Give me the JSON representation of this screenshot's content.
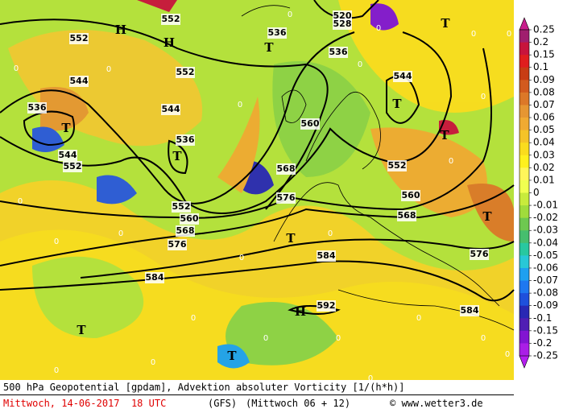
{
  "map": {
    "contour_labels": [
      "552",
      "552",
      "552",
      "552",
      "552",
      "552",
      "544",
      "544",
      "544",
      "544",
      "536",
      "536",
      "536",
      "536",
      "560",
      "560",
      "560",
      "568",
      "568",
      "568",
      "576",
      "576",
      "576",
      "584",
      "584",
      "584",
      "592",
      "520",
      "528"
    ],
    "symbols": [
      "H",
      "H",
      "H",
      "T",
      "T",
      "T",
      "T",
      "T",
      "T",
      "T",
      "T",
      "T",
      "T"
    ],
    "zero_labels": [
      "0",
      "0",
      "0",
      "0",
      "0",
      "0",
      "0",
      "0",
      "0",
      "0",
      "0",
      "0",
      "0",
      "0",
      "0",
      "0",
      "0",
      "0",
      "0",
      "0",
      "0",
      "0",
      "0",
      "0"
    ]
  },
  "colorbar": {
    "ticks": [
      0.25,
      0.2,
      0.15,
      0.1,
      0.09,
      0.08,
      0.07,
      0.06,
      0.05,
      0.04,
      0.03,
      0.02,
      0.01,
      0,
      -0.01,
      -0.02,
      -0.03,
      -0.04,
      -0.05,
      -0.06,
      -0.07,
      -0.08,
      -0.09,
      -0.1,
      -0.15,
      -0.2,
      -0.25
    ],
    "colors": [
      "#a01e6e",
      "#c8143c",
      "#e01e1e",
      "#c83c14",
      "#d25a1e",
      "#dc7828",
      "#e69632",
      "#f0aa32",
      "#f5c328",
      "#fadc1e",
      "#fff01e",
      "#fff55a",
      "#f0ff50",
      "#c8eb3c",
      "#a0dc3c",
      "#6ec850",
      "#46be6e",
      "#28c8a0",
      "#28c8d7",
      "#1ea0f0",
      "#1e78f0",
      "#1e50dc",
      "#2828b4",
      "#501eb4",
      "#8214d2",
      "#aa1ee6"
    ],
    "top_color": "#c81e8c",
    "bottom_color": "#b41ef0"
  },
  "footer": {
    "line1": "500 hPa Geopotential [gpdam], Advektion absoluter Vorticity [1/(h*h)]",
    "date": "Mittwoch, 14-06-2017  18 UTC",
    "model": "(GFS)",
    "run": "(Mittwoch 06 + 12)",
    "credit": "© www.wetter3.de"
  }
}
